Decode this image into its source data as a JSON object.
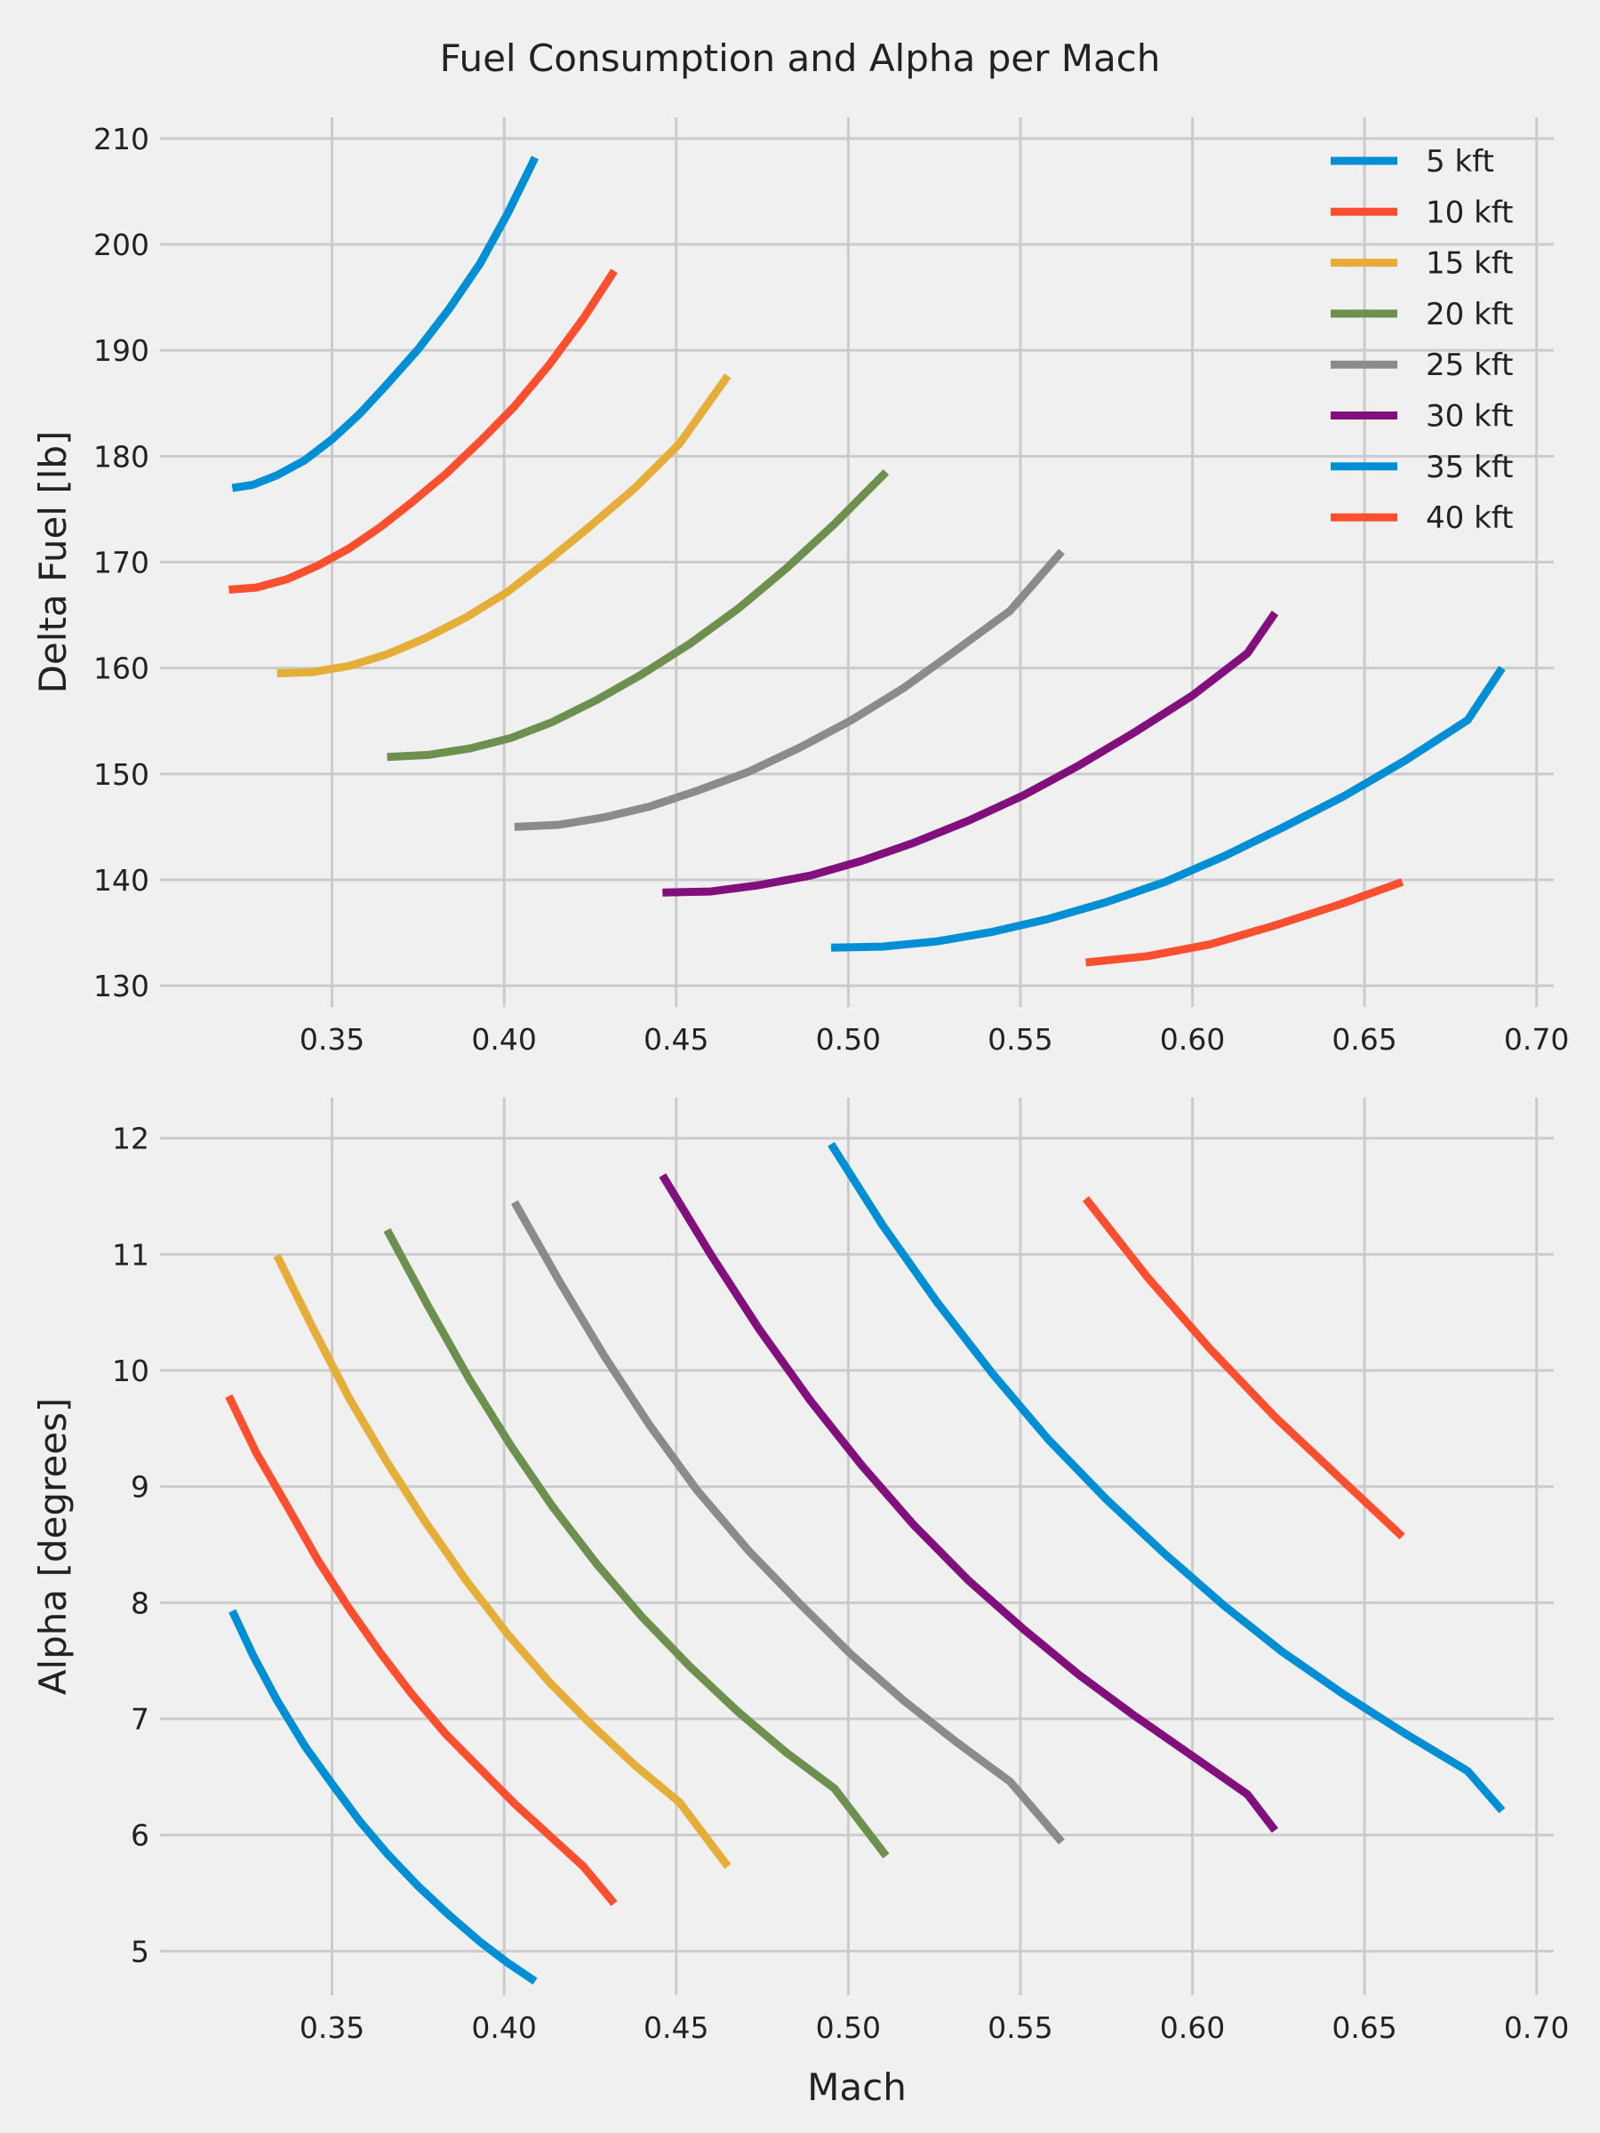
{
  "title": "Fuel Consumption and Alpha per Mach",
  "legend_location": "upper right",
  "chart_data": [
    {
      "type": "line",
      "title": "Fuel Consumption and Alpha per Mach",
      "xlabel": "",
      "ylabel": "Delta Fuel [lb]",
      "xlim": [
        0.3,
        0.705
      ],
      "ylim": [
        128,
        212
      ],
      "xticks": [
        0.35,
        0.4,
        0.45,
        0.5,
        0.55,
        0.6,
        0.65,
        0.7
      ],
      "xtick_labels": [
        "0.35",
        "0.40",
        "0.45",
        "0.50",
        "0.55",
        "0.60",
        "0.65",
        "0.70"
      ],
      "yticks": [
        130,
        140,
        150,
        160,
        170,
        180,
        190,
        200,
        210
      ],
      "ytick_labels": [
        "130",
        "140",
        "150",
        "160",
        "170",
        "180",
        "190",
        "200",
        "210"
      ],
      "grid": true,
      "legend": "upper right",
      "series": [
        {
          "name": "5 kft",
          "color": "#008fd5",
          "x": [
            0.321,
            0.327,
            0.334,
            0.342,
            0.35,
            0.358,
            0.366,
            0.375,
            0.384,
            0.393,
            0.401,
            0.409
          ],
          "y": [
            177.0,
            177.3,
            178.2,
            179.6,
            181.6,
            184.0,
            186.8,
            190.1,
            193.9,
            198.2,
            202.9,
            208.2
          ]
        },
        {
          "name": "10 kft",
          "color": "#fc4f30",
          "x": [
            0.32,
            0.328,
            0.337,
            0.346,
            0.355,
            0.364,
            0.373,
            0.383,
            0.393,
            0.403,
            0.413,
            0.423,
            0.432
          ],
          "y": [
            167.4,
            167.6,
            168.4,
            169.7,
            171.3,
            173.3,
            175.6,
            178.3,
            181.4,
            184.7,
            188.6,
            193.0,
            197.5
          ]
        },
        {
          "name": "15 kft",
          "color": "#e5ae38",
          "x": [
            0.334,
            0.344,
            0.355,
            0.366,
            0.377,
            0.389,
            0.401,
            0.413,
            0.425,
            0.438,
            0.451,
            0.465
          ],
          "y": [
            159.5,
            159.6,
            160.2,
            161.3,
            162.8,
            164.8,
            167.2,
            170.2,
            173.4,
            177.0,
            181.2,
            187.6
          ]
        },
        {
          "name": "20 kft",
          "color": "#6d904f",
          "x": [
            0.366,
            0.378,
            0.39,
            0.402,
            0.414,
            0.427,
            0.44,
            0.454,
            0.468,
            0.482,
            0.496,
            0.511
          ],
          "y": [
            151.6,
            151.8,
            152.4,
            153.4,
            154.9,
            157.0,
            159.4,
            162.3,
            165.6,
            169.4,
            173.6,
            178.5
          ]
        },
        {
          "name": "25 kft",
          "color": "#8b8b8b",
          "x": [
            0.403,
            0.416,
            0.429,
            0.442,
            0.456,
            0.471,
            0.486,
            0.501,
            0.516,
            0.531,
            0.547,
            0.562
          ],
          "y": [
            145.0,
            145.2,
            145.9,
            146.9,
            148.4,
            150.2,
            152.5,
            155.1,
            158.1,
            161.6,
            165.4,
            171.0
          ]
        },
        {
          "name": "30 kft",
          "color": "#810f7c",
          "x": [
            0.446,
            0.46,
            0.474,
            0.489,
            0.504,
            0.519,
            0.535,
            0.551,
            0.567,
            0.583,
            0.6,
            0.616,
            0.624
          ],
          "y": [
            138.8,
            138.9,
            139.5,
            140.4,
            141.8,
            143.5,
            145.6,
            148.0,
            150.8,
            153.9,
            157.4,
            161.4,
            165.2
          ]
        },
        {
          "name": "35 kft",
          "color": "#008fd5",
          "x": [
            0.495,
            0.51,
            0.526,
            0.542,
            0.558,
            0.575,
            0.592,
            0.609,
            0.626,
            0.644,
            0.662,
            0.68,
            0.69
          ],
          "y": [
            133.6,
            133.7,
            134.2,
            135.1,
            136.3,
            137.9,
            139.8,
            142.2,
            144.9,
            147.9,
            151.3,
            155.1,
            160.0
          ]
        },
        {
          "name": "40 kft",
          "color": "#fc4f30",
          "x": [
            0.569,
            0.587,
            0.605,
            0.624,
            0.643,
            0.661
          ],
          "y": [
            132.2,
            132.8,
            133.9,
            135.7,
            137.7,
            139.8
          ]
        }
      ]
    },
    {
      "type": "line",
      "title": "",
      "xlabel": "Mach",
      "ylabel": "Alpha [degrees]",
      "xlim": [
        0.3,
        0.705
      ],
      "ylim": [
        4.62,
        12.35
      ],
      "xticks": [
        0.35,
        0.4,
        0.45,
        0.5,
        0.55,
        0.6,
        0.65,
        0.7
      ],
      "xtick_labels": [
        "0.35",
        "0.40",
        "0.45",
        "0.50",
        "0.55",
        "0.60",
        "0.65",
        "0.70"
      ],
      "yticks": [
        5,
        6,
        7,
        8,
        9,
        10,
        11,
        12
      ],
      "ytick_labels": [
        "5",
        "6",
        "7",
        "8",
        "9",
        "10",
        "11",
        "12"
      ],
      "grid": true,
      "series": [
        {
          "name": "5 kft",
          "color": "#008fd5",
          "x": [
            0.321,
            0.327,
            0.334,
            0.342,
            0.35,
            0.358,
            0.366,
            0.375,
            0.384,
            0.393,
            0.401,
            0.409
          ],
          "y": [
            7.93,
            7.55,
            7.16,
            6.77,
            6.44,
            6.12,
            5.84,
            5.56,
            5.31,
            5.08,
            4.9,
            4.74
          ]
        },
        {
          "name": "10 kft",
          "color": "#fc4f30",
          "x": [
            0.32,
            0.328,
            0.337,
            0.346,
            0.355,
            0.364,
            0.373,
            0.383,
            0.393,
            0.403,
            0.413,
            0.423,
            0.432
          ],
          "y": [
            9.78,
            9.29,
            8.83,
            8.36,
            7.95,
            7.57,
            7.22,
            6.87,
            6.57,
            6.27,
            6.0,
            5.73,
            5.41
          ]
        },
        {
          "name": "15 kft",
          "color": "#e5ae38",
          "x": [
            0.334,
            0.344,
            0.355,
            0.366,
            0.377,
            0.389,
            0.401,
            0.413,
            0.425,
            0.438,
            0.451,
            0.465
          ],
          "y": [
            10.99,
            10.39,
            9.76,
            9.21,
            8.7,
            8.19,
            7.73,
            7.32,
            6.96,
            6.6,
            6.28,
            5.73
          ]
        },
        {
          "name": "20 kft",
          "color": "#6d904f",
          "x": [
            0.366,
            0.378,
            0.39,
            0.402,
            0.414,
            0.427,
            0.44,
            0.454,
            0.468,
            0.482,
            0.496,
            0.511
          ],
          "y": [
            11.21,
            10.55,
            9.92,
            9.35,
            8.83,
            8.33,
            7.88,
            7.45,
            7.06,
            6.71,
            6.4,
            5.82
          ]
        },
        {
          "name": "25 kft",
          "color": "#8b8b8b",
          "x": [
            0.403,
            0.416,
            0.429,
            0.442,
            0.456,
            0.471,
            0.486,
            0.501,
            0.516,
            0.531,
            0.547,
            0.562
          ],
          "y": [
            11.45,
            10.77,
            10.13,
            9.54,
            8.97,
            8.45,
            7.99,
            7.55,
            7.16,
            6.81,
            6.46,
            5.94
          ]
        },
        {
          "name": "30 kft",
          "color": "#810f7c",
          "x": [
            0.446,
            0.46,
            0.474,
            0.489,
            0.504,
            0.519,
            0.535,
            0.551,
            0.567,
            0.583,
            0.6,
            0.616,
            0.624
          ],
          "y": [
            11.68,
            11.0,
            10.36,
            9.74,
            9.18,
            8.67,
            8.19,
            7.77,
            7.38,
            7.03,
            6.68,
            6.35,
            6.04
          ]
        },
        {
          "name": "35 kft",
          "color": "#008fd5",
          "x": [
            0.495,
            0.51,
            0.526,
            0.542,
            0.558,
            0.575,
            0.592,
            0.609,
            0.626,
            0.644,
            0.662,
            0.68,
            0.69
          ],
          "y": [
            11.95,
            11.25,
            10.58,
            9.97,
            9.41,
            8.89,
            8.42,
            7.98,
            7.58,
            7.21,
            6.87,
            6.55,
            6.21
          ]
        },
        {
          "name": "40 kft",
          "color": "#fc4f30",
          "x": [
            0.569,
            0.587,
            0.605,
            0.624,
            0.643,
            0.661
          ],
          "y": [
            11.48,
            10.8,
            10.19,
            9.6,
            9.07,
            8.57
          ]
        }
      ]
    }
  ]
}
